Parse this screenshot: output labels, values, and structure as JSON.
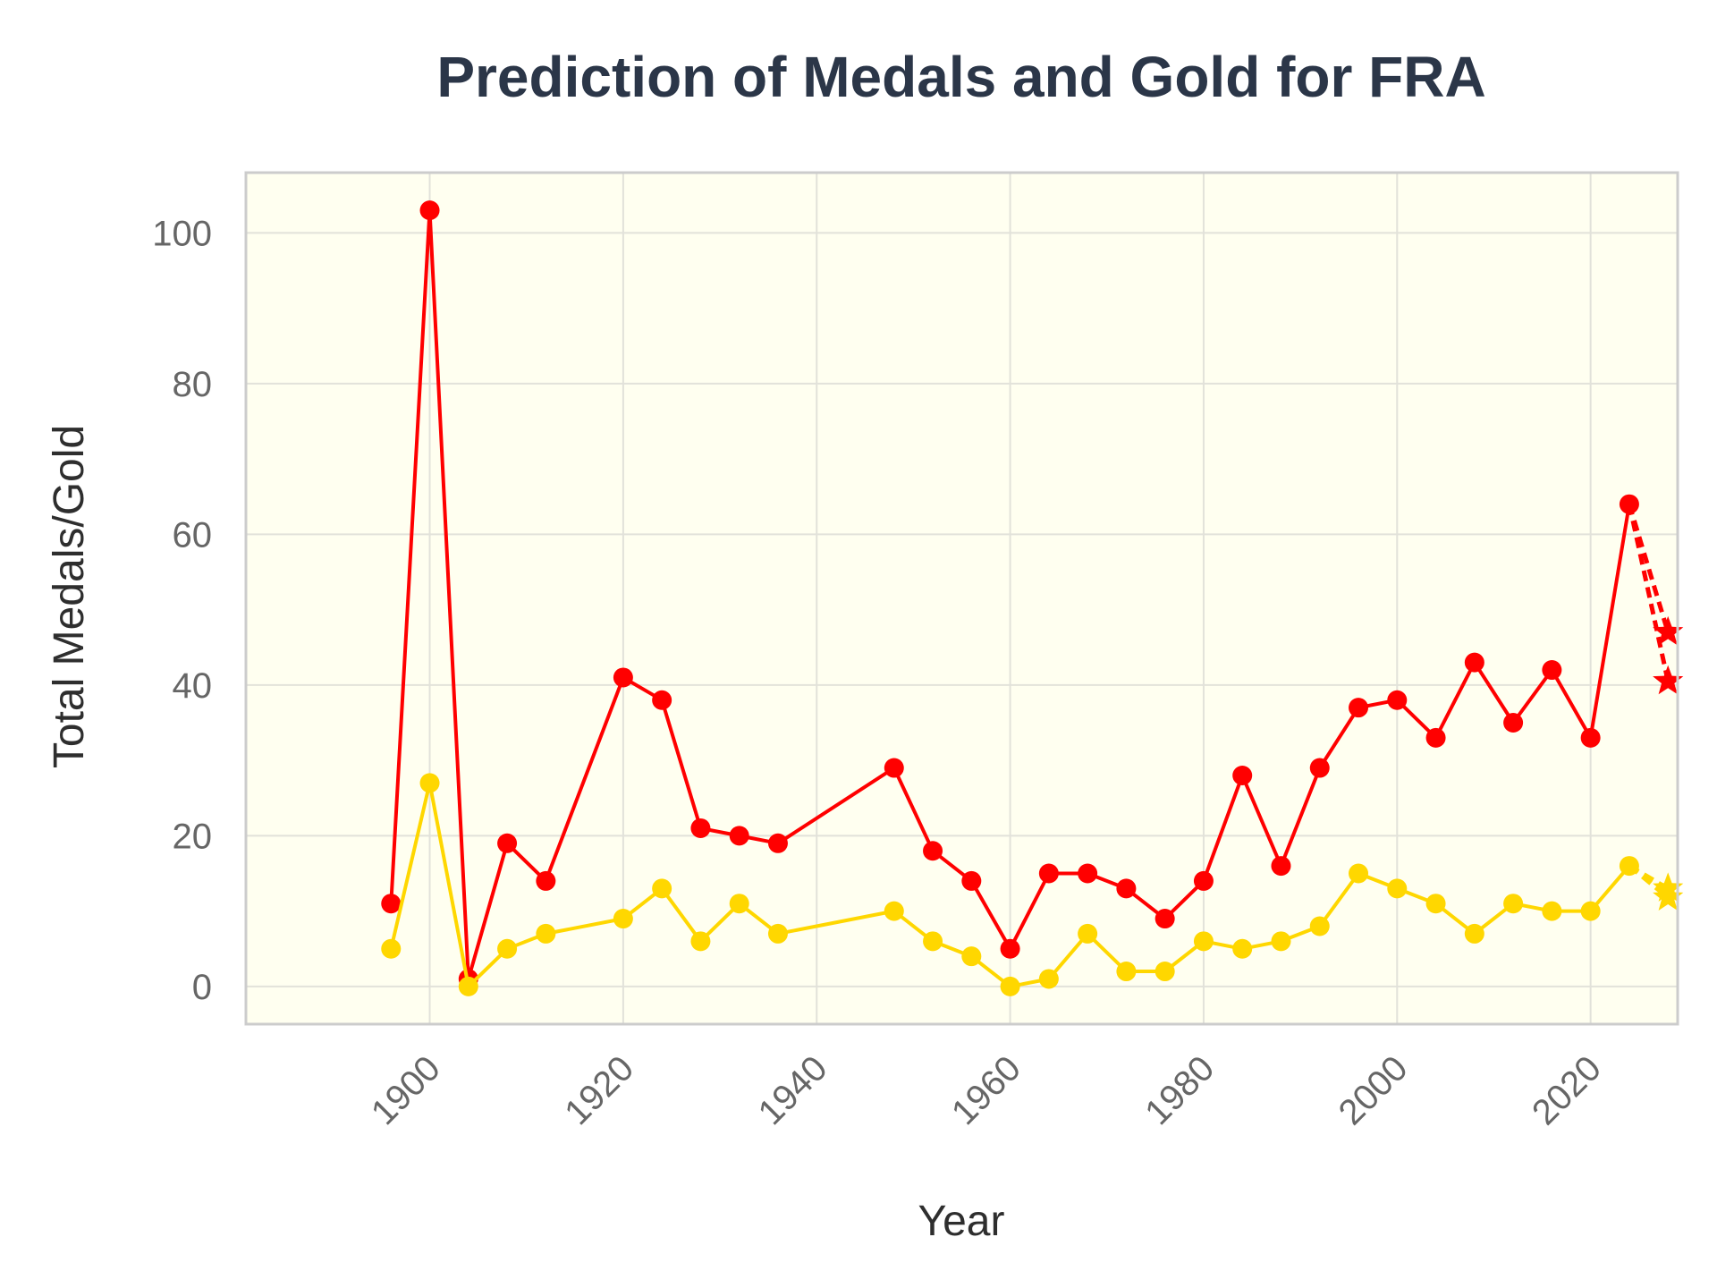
{
  "chart_data": {
    "type": "line",
    "title": "Prediction of Medals and Gold for FRA",
    "xlabel": "Year",
    "ylabel": "Total Medals/Gold",
    "xlim": [
      1881,
      2029
    ],
    "ylim": [
      -5,
      108
    ],
    "xticks": [
      1900,
      1920,
      1940,
      1960,
      1980,
      2000,
      2020
    ],
    "yticks": [
      0,
      20,
      40,
      60,
      80,
      100
    ],
    "grid": true,
    "legend": "none",
    "colors": {
      "plot_background": "#fffff0",
      "plot_border": "#cccccc",
      "grid": "#e2e2da",
      "total": "#ff0000",
      "gold": "#ffd700"
    },
    "series": [
      {
        "color": "#ff0000",
        "marker": "circle",
        "x": [
          1896,
          1900,
          1904,
          1908,
          1912,
          1920,
          1924,
          1928,
          1932,
          1936,
          1948,
          1952,
          1956,
          1960,
          1964,
          1968,
          1972,
          1976,
          1980,
          1984,
          1988,
          1992,
          1996,
          2000,
          2004,
          2008,
          2012,
          2016,
          2020,
          2024
        ],
        "values": [
          11,
          103,
          1,
          19,
          14,
          41,
          38,
          21,
          20,
          19,
          29,
          18,
          14,
          5,
          15,
          15,
          13,
          9,
          14,
          28,
          16,
          29,
          37,
          38,
          33,
          43,
          35,
          42,
          33,
          64
        ]
      },
      {
        "color": "#ffd700",
        "marker": "circle",
        "x": [
          1896,
          1900,
          1904,
          1908,
          1912,
          1920,
          1924,
          1928,
          1932,
          1936,
          1948,
          1952,
          1956,
          1960,
          1964,
          1968,
          1972,
          1976,
          1980,
          1984,
          1988,
          1992,
          1996,
          2000,
          2004,
          2008,
          2012,
          2016,
          2020,
          2024
        ],
        "values": [
          5,
          27,
          0,
          5,
          7,
          9,
          13,
          6,
          11,
          7,
          10,
          6,
          4,
          0,
          1,
          7,
          2,
          2,
          6,
          5,
          6,
          8,
          15,
          13,
          11,
          7,
          11,
          10,
          10,
          16
        ]
      }
    ],
    "predictions": [
      {
        "color": "#ff0000",
        "marker": "star",
        "style": "dashed",
        "from": [
          2024,
          64
        ],
        "points": [
          [
            2028,
            47
          ],
          [
            2028,
            40.5
          ]
        ]
      },
      {
        "color": "#ffd700",
        "marker": "star",
        "style": "dashed",
        "from": [
          2024,
          16
        ],
        "points": [
          [
            2028,
            13
          ],
          [
            2028,
            11.8
          ]
        ]
      }
    ]
  }
}
